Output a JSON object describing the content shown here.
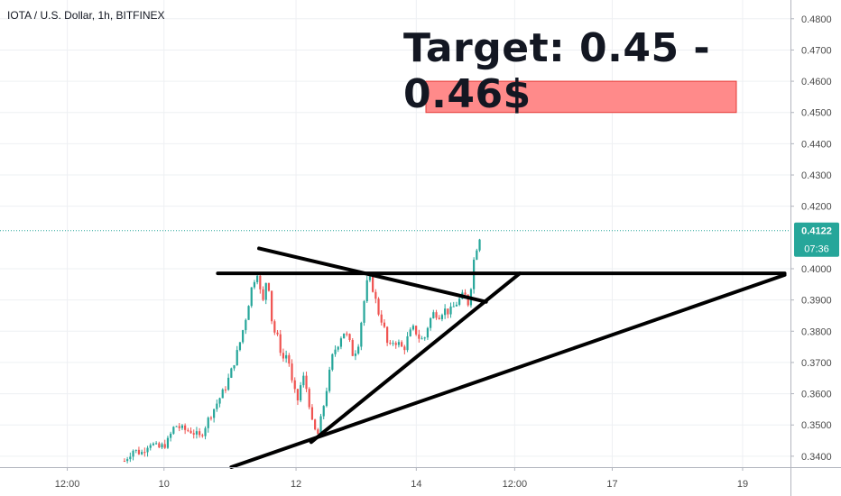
{
  "header": {
    "title": "IOTA / U.S. Dollar, 1h, BITFINEX"
  },
  "annotation": {
    "target_text": "Target: 0.45 - 0.46$"
  },
  "price_label": {
    "value": "0.4122",
    "countdown": "07:36"
  },
  "colors": {
    "up": "#26a69a",
    "down": "#ef5350",
    "target_zone": "#ff8a8a",
    "target_zone_border": "#e53935",
    "price_tag": "#26a69a",
    "grid": "#eef0f3",
    "axis_text": "#4a4a4a",
    "lines": "#000000"
  },
  "chart_data": {
    "type": "candlestick",
    "y_axis": {
      "ticks": [
        "0.4800",
        "0.4700",
        "0.4600",
        "0.4500",
        "0.4400",
        "0.4300",
        "0.4200",
        "0.4000",
        "0.3900",
        "0.3800",
        "0.3700",
        "0.3600",
        "0.3500",
        "0.3400"
      ],
      "ylim": [
        0.3365,
        0.486
      ]
    },
    "x_axis": {
      "ticks": [
        "12:00",
        "10",
        "12",
        "14",
        "12:00",
        "17",
        "19"
      ]
    },
    "current_price": 0.4122,
    "target_zone": {
      "low": 0.45,
      "high": 0.46
    },
    "trendlines": [
      {
        "name": "descending-resistance",
        "from": [
          0.308,
          0.4065
        ],
        "to": [
          0.578,
          0.3894
        ]
      },
      {
        "name": "horizontal-resistance",
        "from": [
          0.259,
          0.3985
        ],
        "to": [
          0.933,
          0.3985
        ]
      },
      {
        "name": "inner-support",
        "from": [
          0.37,
          0.3445
        ],
        "to": [
          0.618,
          0.3985
        ]
      },
      {
        "name": "outer-support",
        "from": [
          0.275,
          0.3365
        ],
        "to": [
          0.933,
          0.398
        ]
      }
    ],
    "close_path": [
      [
        0.148,
        0.3385
      ],
      [
        0.158,
        0.342
      ],
      [
        0.168,
        0.341
      ],
      [
        0.178,
        0.3445
      ],
      [
        0.188,
        0.3425
      ],
      [
        0.198,
        0.344
      ],
      [
        0.208,
        0.35
      ],
      [
        0.218,
        0.3485
      ],
      [
        0.228,
        0.348
      ],
      [
        0.238,
        0.346
      ],
      [
        0.248,
        0.352
      ],
      [
        0.258,
        0.357
      ],
      [
        0.268,
        0.362
      ],
      [
        0.276,
        0.368
      ],
      [
        0.284,
        0.375
      ],
      [
        0.292,
        0.384
      ],
      [
        0.3,
        0.395
      ],
      [
        0.306,
        0.399
      ],
      [
        0.312,
        0.388
      ],
      [
        0.318,
        0.399
      ],
      [
        0.324,
        0.381
      ],
      [
        0.33,
        0.378
      ],
      [
        0.336,
        0.371
      ],
      [
        0.342,
        0.373
      ],
      [
        0.348,
        0.362
      ],
      [
        0.354,
        0.358
      ],
      [
        0.36,
        0.366
      ],
      [
        0.366,
        0.36
      ],
      [
        0.372,
        0.349
      ],
      [
        0.378,
        0.347
      ],
      [
        0.384,
        0.355
      ],
      [
        0.39,
        0.364
      ],
      [
        0.396,
        0.373
      ],
      [
        0.402,
        0.376
      ],
      [
        0.408,
        0.38
      ],
      [
        0.414,
        0.378
      ],
      [
        0.42,
        0.372
      ],
      [
        0.426,
        0.376
      ],
      [
        0.432,
        0.388
      ],
      [
        0.438,
        0.398
      ],
      [
        0.444,
        0.393
      ],
      [
        0.45,
        0.386
      ],
      [
        0.456,
        0.382
      ],
      [
        0.462,
        0.374
      ],
      [
        0.468,
        0.377
      ],
      [
        0.474,
        0.376
      ],
      [
        0.48,
        0.374
      ],
      [
        0.486,
        0.379
      ],
      [
        0.492,
        0.381
      ],
      [
        0.498,
        0.378
      ],
      [
        0.504,
        0.377
      ],
      [
        0.51,
        0.383
      ],
      [
        0.516,
        0.386
      ],
      [
        0.522,
        0.385
      ],
      [
        0.528,
        0.387
      ],
      [
        0.534,
        0.386
      ],
      [
        0.54,
        0.388
      ],
      [
        0.546,
        0.39
      ],
      [
        0.552,
        0.392
      ],
      [
        0.558,
        0.388
      ],
      [
        0.562,
        0.401
      ],
      [
        0.566,
        0.406
      ],
      [
        0.57,
        0.41
      ],
      [
        0.573,
        0.4122
      ]
    ]
  }
}
